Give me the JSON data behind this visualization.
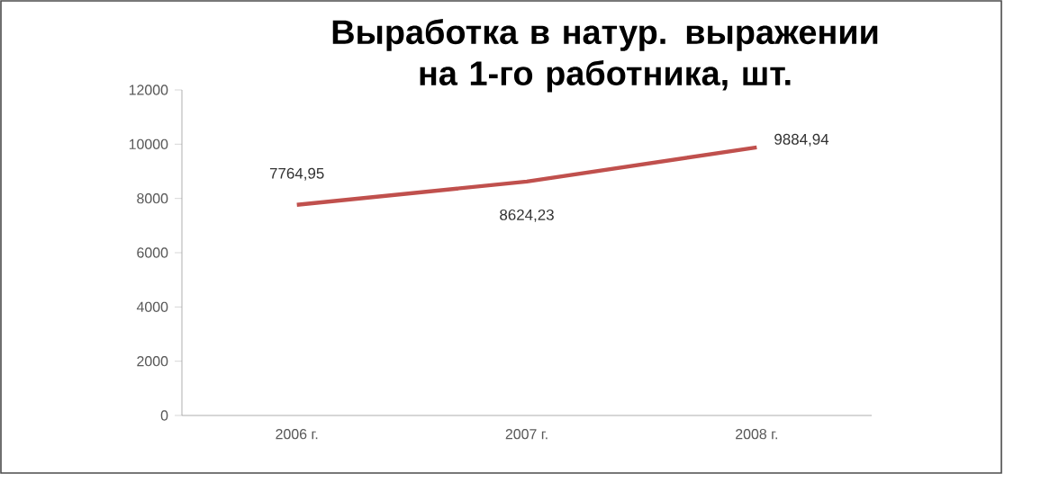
{
  "chart_data": {
    "type": "line",
    "title": "Выработка в натур. выражении на 1-го работника, шт.",
    "categories": [
      "2006 г.",
      "2007 г.",
      "2008 г."
    ],
    "series": [
      {
        "color": "#c0504d",
        "values": [
          7764.95,
          8624.23,
          9884.94
        ],
        "value_labels": [
          "7764,95",
          "8624,23",
          "9884,94"
        ]
      }
    ],
    "ylim": [
      0,
      12000
    ],
    "yticks": [
      0,
      2000,
      4000,
      6000,
      8000,
      10000,
      12000
    ],
    "grid": false,
    "marker": "none",
    "line_style": "solid"
  }
}
